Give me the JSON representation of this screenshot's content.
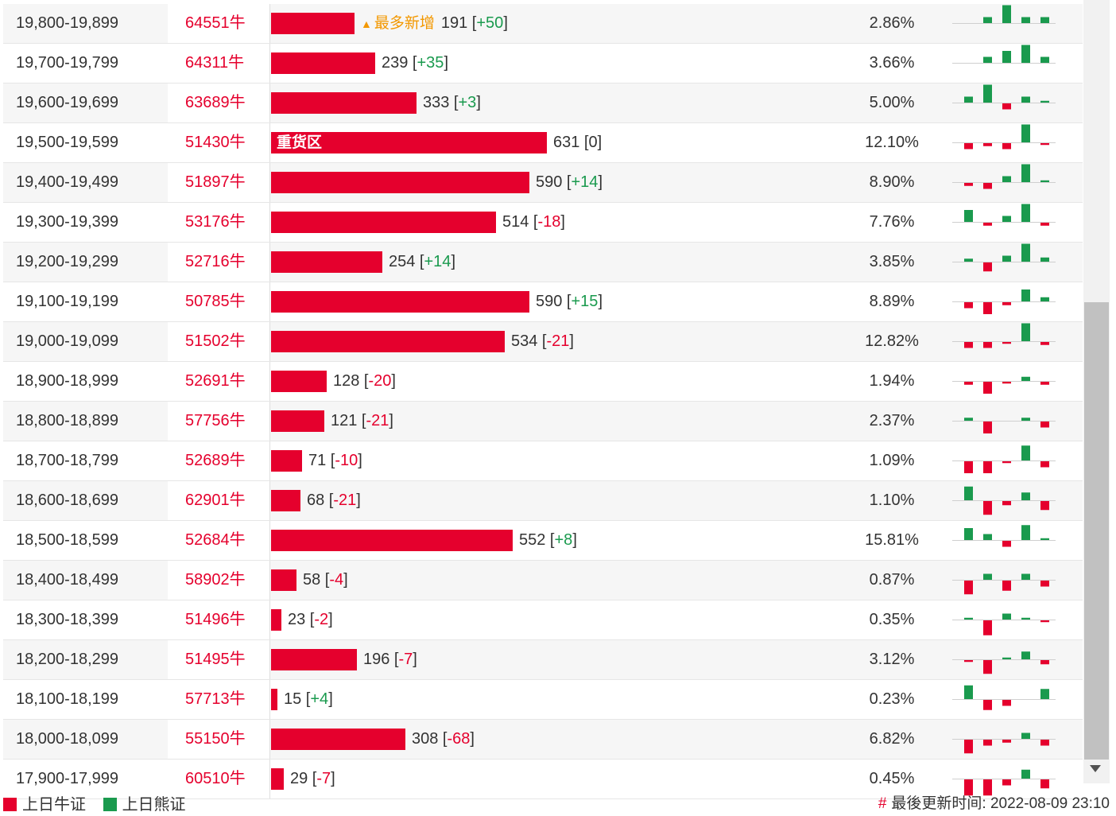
{
  "chart_data": {
    "type": "bar",
    "orientation": "horizontal",
    "rows": [
      {
        "range": "19,800-19,899",
        "code": "64551牛",
        "value": 191,
        "change": "+50",
        "pct": "2.86%",
        "badge": "最多新增",
        "mini": [
          0,
          1,
          3,
          1,
          1
        ]
      },
      {
        "range": "19,700-19,799",
        "code": "64311牛",
        "value": 239,
        "change": "+35",
        "pct": "3.66%",
        "mini": [
          0,
          1,
          2,
          3,
          1
        ]
      },
      {
        "range": "19,600-19,699",
        "code": "63689牛",
        "value": 333,
        "change": "+3",
        "pct": "5.00%",
        "mini": [
          1,
          3,
          -1,
          1,
          0.3
        ]
      },
      {
        "range": "19,500-19,599",
        "code": "51430牛",
        "value": 631,
        "change": "0",
        "pct": "12.10%",
        "label": "重货区",
        "mini": [
          -1,
          -0.5,
          -1,
          3,
          -0.3
        ]
      },
      {
        "range": "19,400-19,499",
        "code": "51897牛",
        "value": 590,
        "change": "+14",
        "pct": "8.90%",
        "mini": [
          -0.5,
          -1,
          1,
          3,
          0.3
        ]
      },
      {
        "range": "19,300-19,399",
        "code": "53176牛",
        "value": 514,
        "change": "-18",
        "pct": "7.76%",
        "mini": [
          2,
          -0.5,
          1,
          3,
          -0.5
        ]
      },
      {
        "range": "19,200-19,299",
        "code": "52716牛",
        "value": 254,
        "change": "+14",
        "pct": "3.85%",
        "mini": [
          0.5,
          -1.5,
          1,
          3,
          0.7
        ]
      },
      {
        "range": "19,100-19,199",
        "code": "50785牛",
        "value": 590,
        "change": "+15",
        "pct": "8.89%",
        "mini": [
          -1,
          -2,
          -0.5,
          2,
          0.7
        ]
      },
      {
        "range": "19,000-19,099",
        "code": "51502牛",
        "value": 534,
        "change": "-21",
        "pct": "12.82%",
        "mini": [
          -1,
          -1,
          -0.3,
          3,
          -0.5
        ]
      },
      {
        "range": "18,900-18,999",
        "code": "52691牛",
        "value": 128,
        "change": "-20",
        "pct": "1.94%",
        "mini": [
          -0.5,
          -2,
          -0.3,
          0.7,
          -0.5
        ]
      },
      {
        "range": "18,800-18,899",
        "code": "57756牛",
        "value": 121,
        "change": "-21",
        "pct": "2.37%",
        "mini": [
          0.5,
          -2,
          0,
          0.5,
          -1
        ]
      },
      {
        "range": "18,700-18,799",
        "code": "52689牛",
        "value": 71,
        "change": "-10",
        "pct": "1.09%",
        "mini": [
          -2,
          -2,
          -0.3,
          2.5,
          -1
        ]
      },
      {
        "range": "18,600-18,699",
        "code": "62901牛",
        "value": 68,
        "change": "-21",
        "pct": "1.10%",
        "mini": [
          2.3,
          -2.3,
          -0.7,
          1.3,
          -1.5
        ]
      },
      {
        "range": "18,500-18,599",
        "code": "52684牛",
        "value": 552,
        "change": "+8",
        "pct": "15.81%",
        "mini": [
          2,
          1,
          -1,
          2.5,
          0.3
        ]
      },
      {
        "range": "18,400-18,499",
        "code": "58902牛",
        "value": 58,
        "change": "-4",
        "pct": "0.87%",
        "mini": [
          -2.3,
          1,
          -1.7,
          1,
          -1
        ]
      },
      {
        "range": "18,300-18,399",
        "code": "51496牛",
        "value": 23,
        "change": "-2",
        "pct": "0.35%",
        "mini": [
          0.3,
          -2.5,
          1,
          0.3,
          -0.3
        ]
      },
      {
        "range": "18,200-18,299",
        "code": "51495牛",
        "value": 196,
        "change": "-7",
        "pct": "3.12%",
        "mini": [
          -0.3,
          -2.3,
          0.3,
          1.3,
          -0.7
        ]
      },
      {
        "range": "18,100-18,199",
        "code": "57713牛",
        "value": 15,
        "change": "+4",
        "pct": "0.23%",
        "mini": [
          2.3,
          -1.7,
          -1,
          0,
          1.7
        ]
      },
      {
        "range": "18,000-18,099",
        "code": "55150牛",
        "value": 308,
        "change": "-68",
        "pct": "6.82%",
        "mini": [
          -2.3,
          -1,
          -0.5,
          1,
          -1
        ]
      },
      {
        "range": "17,900-17,999",
        "code": "60510牛",
        "value": 29,
        "change": "-7",
        "pct": "0.45%",
        "mini": [
          -2.7,
          -2.7,
          -1,
          1.5,
          -1.5
        ]
      }
    ],
    "series": [
      {
        "name": "上日牛证"
      },
      {
        "name": "上日熊证"
      }
    ]
  },
  "legend": {
    "bull": "上日牛证",
    "bear": "上日熊证"
  },
  "colors": {
    "bull": "#e5002d",
    "bear": "#1a9a4e",
    "badge": "#f39800"
  },
  "footer": {
    "hash": "#",
    "updated": "最後更新时间: 2022-08-09 23:10"
  },
  "icons": {
    "badge": "triangle-up-icon",
    "scroll": "scroll-down-arrow-icon"
  }
}
